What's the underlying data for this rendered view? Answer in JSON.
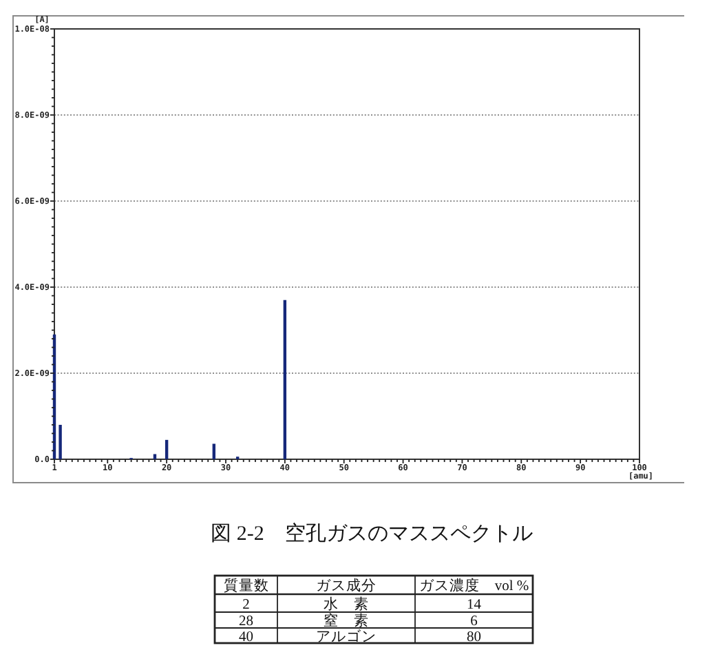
{
  "chart_data": [
    {
      "type": "bar",
      "title": "図 2-2　空孔ガスのマススペクトル",
      "xlabel": "[amu]",
      "ylabel": "[A]",
      "color": "#16287a",
      "grid": "y",
      "x": [
        1,
        2,
        14,
        18,
        20,
        28,
        32,
        40
      ],
      "values": [
        2.9e-09,
        8e-10,
        3e-11,
        1.2e-10,
        4.5e-10,
        3.6e-10,
        6e-11,
        3.7e-09
      ],
      "xlim": [
        1,
        100
      ],
      "ylim": [
        0,
        1e-08
      ],
      "xticks": [
        1,
        {
          "value": 2,
          "label": null
        },
        {
          "value": 3,
          "label": null
        },
        {
          "value": 4,
          "label": null
        },
        {
          "value": 5,
          "label": null
        },
        {
          "value": 6,
          "label": null
        },
        {
          "value": 7,
          "label": null
        },
        {
          "value": 8,
          "label": null
        },
        {
          "value": 9,
          "label": null
        },
        10,
        {
          "value": 11,
          "label": null
        },
        {
          "value": 12,
          "label": null
        },
        {
          "value": 13,
          "label": null
        },
        {
          "value": 14,
          "label": null
        },
        {
          "value": 15,
          "label": null
        },
        {
          "value": 16,
          "label": null
        },
        {
          "value": 17,
          "label": null
        },
        {
          "value": 18,
          "label": null
        },
        {
          "value": 19,
          "label": null
        },
        20,
        {
          "value": 21,
          "label": null
        },
        {
          "value": 22,
          "label": null
        },
        {
          "value": 23,
          "label": null
        },
        {
          "value": 24,
          "label": null
        },
        {
          "value": 25,
          "label": null
        },
        {
          "value": 26,
          "label": null
        },
        {
          "value": 27,
          "label": null
        },
        {
          "value": 28,
          "label": null
        },
        {
          "value": 29,
          "label": null
        },
        30,
        {
          "value": 31,
          "label": null
        },
        {
          "value": 32,
          "label": null
        },
        {
          "value": 33,
          "label": null
        },
        {
          "value": 34,
          "label": null
        },
        {
          "value": 35,
          "label": null
        },
        {
          "value": 36,
          "label": null
        },
        {
          "value": 37,
          "label": null
        },
        {
          "value": 38,
          "label": null
        },
        {
          "value": 39,
          "label": null
        },
        40,
        {
          "value": 41,
          "label": null
        },
        {
          "value": 42,
          "label": null
        },
        {
          "value": 43,
          "label": null
        },
        {
          "value": 44,
          "label": null
        },
        {
          "value": 45,
          "label": null
        },
        {
          "value": 46,
          "label": null
        },
        {
          "value": 47,
          "label": null
        },
        {
          "value": 48,
          "label": null
        },
        {
          "value": 49,
          "label": null
        },
        50,
        {
          "value": 51,
          "label": null
        },
        {
          "value": 52,
          "label": null
        },
        {
          "value": 53,
          "label": null
        },
        {
          "value": 54,
          "label": null
        },
        {
          "value": 55,
          "label": null
        },
        {
          "value": 56,
          "label": null
        },
        {
          "value": 57,
          "label": null
        },
        {
          "value": 58,
          "label": null
        },
        {
          "value": 59,
          "label": null
        },
        60,
        {
          "value": 61,
          "label": null
        },
        {
          "value": 62,
          "label": null
        },
        {
          "value": 63,
          "label": null
        },
        {
          "value": 64,
          "label": null
        },
        {
          "value": 65,
          "label": null
        },
        {
          "value": 66,
          "label": null
        },
        {
          "value": 67,
          "label": null
        },
        {
          "value": 68,
          "label": null
        },
        {
          "value": 69,
          "label": null
        },
        70,
        {
          "value": 71,
          "label": null
        },
        {
          "value": 72,
          "label": null
        },
        {
          "value": 73,
          "label": null
        },
        {
          "value": 74,
          "label": null
        },
        {
          "value": 75,
          "label": null
        },
        {
          "value": 76,
          "label": null
        },
        {
          "value": 77,
          "label": null
        },
        {
          "value": 78,
          "label": null
        },
        {
          "value": 79,
          "label": null
        },
        80,
        {
          "value": 81,
          "label": null
        },
        {
          "value": 82,
          "label": null
        },
        {
          "value": 83,
          "label": null
        },
        {
          "value": 84,
          "label": null
        },
        {
          "value": 85,
          "label": null
        },
        {
          "value": 86,
          "label": null
        },
        {
          "value": 87,
          "label": null
        },
        {
          "value": 88,
          "label": null
        },
        {
          "value": 89,
          "label": null
        },
        90,
        {
          "value": 91,
          "label": null
        },
        {
          "value": 92,
          "label": null
        },
        {
          "value": 93,
          "label": null
        },
        {
          "value": 94,
          "label": null
        },
        {
          "value": 95,
          "label": null
        },
        {
          "value": 96,
          "label": null
        },
        {
          "value": 97,
          "label": null
        },
        {
          "value": 98,
          "label": null
        },
        {
          "value": 99,
          "label": null
        },
        100
      ],
      "yticks": [
        {
          "value": 0,
          "label": "0.0"
        },
        {
          "value": 2e-10,
          "label": null
        },
        {
          "value": 4e-10,
          "label": null
        },
        {
          "value": 6e-10,
          "label": null
        },
        {
          "value": 8e-10,
          "label": null
        },
        {
          "value": 1e-09,
          "label": null
        },
        {
          "value": 1.2e-09,
          "label": null
        },
        {
          "value": 1.4e-09,
          "label": null
        },
        {
          "value": 1.6e-09,
          "label": null
        },
        {
          "value": 1.8e-09,
          "label": null
        },
        {
          "value": 2e-09,
          "label": "2.0E-09"
        },
        {
          "value": 2.2e-09,
          "label": null
        },
        {
          "value": 2.4e-09,
          "label": null
        },
        {
          "value": 2.6e-09,
          "label": null
        },
        {
          "value": 2.8e-09,
          "label": null
        },
        {
          "value": 3e-09,
          "label": null
        },
        {
          "value": 3.2e-09,
          "label": null
        },
        {
          "value": 3.4e-09,
          "label": null
        },
        {
          "value": 3.6e-09,
          "label": null
        },
        {
          "value": 3.8e-09,
          "label": null
        },
        {
          "value": 4e-09,
          "label": "4.0E-09"
        },
        {
          "value": 4.2e-09,
          "label": null
        },
        {
          "value": 4.4e-09,
          "label": null
        },
        {
          "value": 4.6e-09,
          "label": null
        },
        {
          "value": 4.8e-09,
          "label": null
        },
        {
          "value": 5e-09,
          "label": null
        },
        {
          "value": 5.2e-09,
          "label": null
        },
        {
          "value": 5.4e-09,
          "label": null
        },
        {
          "value": 5.6e-09,
          "label": null
        },
        {
          "value": 5.8e-09,
          "label": null
        },
        {
          "value": 6e-09,
          "label": "6.0E-09"
        },
        {
          "value": 6.2e-09,
          "label": null
        },
        {
          "value": 6.4e-09,
          "label": null
        },
        {
          "value": 6.6e-09,
          "label": null
        },
        {
          "value": 6.8e-09,
          "label": null
        },
        {
          "value": 7e-09,
          "label": null
        },
        {
          "value": 7.2e-09,
          "label": null
        },
        {
          "value": 7.4e-09,
          "label": null
        },
        {
          "value": 7.6e-09,
          "label": null
        },
        {
          "value": 7.8e-09,
          "label": null
        },
        {
          "value": 8e-09,
          "label": "8.0E-09"
        },
        {
          "value": 8.2e-09,
          "label": null
        },
        {
          "value": 8.4e-09,
          "label": null
        },
        {
          "value": 8.6e-09,
          "label": null
        },
        {
          "value": 8.8e-09,
          "label": null
        },
        {
          "value": 9e-09,
          "label": null
        },
        {
          "value": 9.2e-09,
          "label": null
        },
        {
          "value": 9.4e-09,
          "label": null
        },
        {
          "value": 9.6e-09,
          "label": null
        },
        {
          "value": 9.8e-09,
          "label": null
        },
        {
          "value": 1e-08,
          "label": "1.0E-08"
        }
      ]
    },
    {
      "type": "other",
      "categories": [
        "質量数",
        "ガス成分",
        "ガス濃度　vol %"
      ],
      "annotations": [
        "2",
        "水　素",
        "14",
        "28",
        "窒　素",
        "6",
        "40",
        "アルゴン",
        "80"
      ]
    }
  ]
}
